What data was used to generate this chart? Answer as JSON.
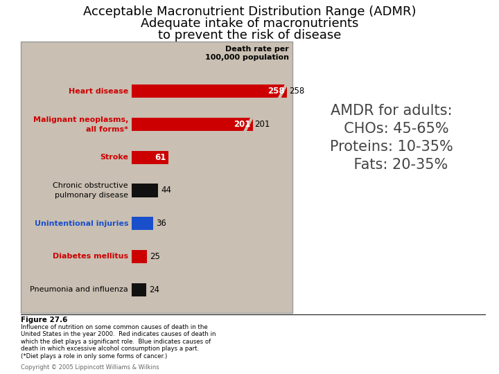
{
  "title_line1": "Acceptable Macronutrient Distribution Range (ADMR)",
  "title_line2": "Adequate intake of macronutrients",
  "title_line3": "to prevent the risk of disease",
  "title_fontsize": 13,
  "bg_color": "#ffffff",
  "chart_bg_color": "#c9bfb2",
  "categories": [
    "Heart disease",
    "Malignant neoplasms,\nall forms*",
    "Stroke",
    "Chronic obstructive\npulmonary disease",
    "Unintentional injuries",
    "Diabetes mellitus",
    "Pneumonia and influenza"
  ],
  "values": [
    258,
    201,
    61,
    44,
    36,
    25,
    24
  ],
  "bar_colors": [
    "#cc0000",
    "#cc0000",
    "#cc0000",
    "#111111",
    "#1a4fcc",
    "#cc0000",
    "#111111"
  ],
  "label_colors": [
    "#cc0000",
    "#cc0000",
    "#cc0000",
    "#000000",
    "#1a4fcc",
    "#cc0000",
    "#000000"
  ],
  "chart_header": "Death rate per\n100,000 population",
  "amdr_text": "AMDR for adults:\n  CHOs: 45-65%\nProteins: 10-35%\n    Fats: 20-35%",
  "amdr_lines": [
    "AMDR for adults:",
    "  CHOs: 45-65%",
    "Proteins: 10-35%",
    "    Fats: 20-35%"
  ],
  "amdr_fontsize": 15,
  "figure_caption": "Figure 27.6",
  "caption_text": "Influence of nutrition on some common causes of death in the\nUnited States in the year 2000.  Red indicates causes of death in\nwhich the diet plays a significant role.  Blue indicates causes of\ndeath in which excessive alcohol consumption plays a part.\n(*Diet plays a role in only some forms of cancer.)",
  "copyright_text": "Copyright © 2005 Lippincott Williams & Wilkins"
}
